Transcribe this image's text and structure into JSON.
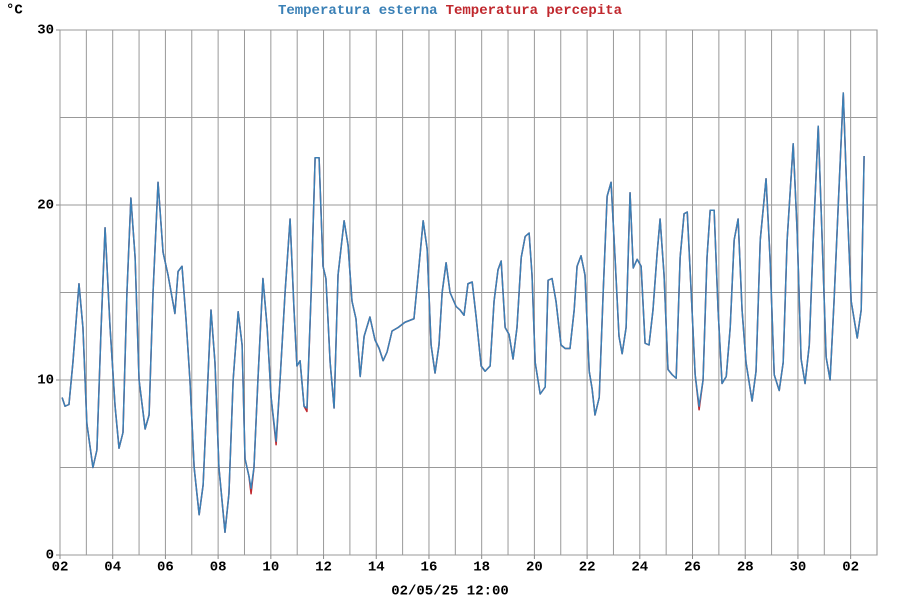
{
  "chart_data": {
    "type": "line",
    "y_unit": "°C",
    "annotation": "02/05/25 12:00",
    "xlim": [
      0,
      31
    ],
    "xticks": [
      {
        "value": 0,
        "label": "02"
      },
      {
        "value": 2,
        "label": "04"
      },
      {
        "value": 4,
        "label": "06"
      },
      {
        "value": 6,
        "label": "08"
      },
      {
        "value": 8,
        "label": "10"
      },
      {
        "value": 10,
        "label": "12"
      },
      {
        "value": 12,
        "label": "14"
      },
      {
        "value": 14,
        "label": "16"
      },
      {
        "value": 16,
        "label": "18"
      },
      {
        "value": 18,
        "label": "20"
      },
      {
        "value": 20,
        "label": "22"
      },
      {
        "value": 22,
        "label": "24"
      },
      {
        "value": 24,
        "label": "26"
      },
      {
        "value": 26,
        "label": "28"
      },
      {
        "value": 28,
        "label": "30"
      },
      {
        "value": 30,
        "label": "02"
      }
    ],
    "xminorticks": [
      1,
      3,
      5,
      7,
      9,
      11,
      13,
      15,
      17,
      19,
      21,
      23,
      25,
      27,
      29
    ],
    "ylim": [
      0,
      30
    ],
    "yticks": [
      0,
      10,
      20,
      30
    ],
    "yminorticks": [
      5,
      15,
      25
    ],
    "grid": true,
    "x": [
      0.08,
      0.19,
      0.34,
      0.49,
      0.72,
      0.87,
      1.02,
      1.25,
      1.4,
      1.56,
      1.71,
      1.9,
      2.09,
      2.24,
      2.39,
      2.54,
      2.69,
      2.85,
      3.0,
      3.23,
      3.38,
      3.53,
      3.72,
      3.91,
      4.1,
      4.36,
      4.48,
      4.63,
      4.78,
      4.93,
      5.09,
      5.28,
      5.43,
      5.58,
      5.73,
      5.88,
      6.03,
      6.26,
      6.41,
      6.57,
      6.76,
      6.91,
      7.02,
      7.17,
      7.25,
      7.36,
      7.51,
      7.7,
      7.86,
      8.01,
      8.2,
      8.35,
      8.54,
      8.73,
      8.88,
      8.99,
      9.11,
      9.26,
      9.37,
      9.53,
      9.68,
      9.83,
      9.98,
      10.09,
      10.25,
      10.4,
      10.55,
      10.78,
      10.93,
      11.08,
      11.23,
      11.39,
      11.54,
      11.76,
      11.95,
      12.11,
      12.26,
      12.41,
      12.6,
      12.83,
      13.09,
      13.43,
      13.59,
      13.78,
      13.93,
      14.08,
      14.23,
      14.38,
      14.5,
      14.65,
      14.8,
      15.03,
      15.18,
      15.33,
      15.48,
      15.64,
      15.79,
      15.98,
      16.13,
      16.32,
      16.47,
      16.62,
      16.74,
      16.89,
      17.04,
      17.19,
      17.34,
      17.5,
      17.65,
      17.8,
      17.91,
      18.03,
      18.22,
      18.41,
      18.52,
      18.67,
      18.82,
      19.01,
      19.17,
      19.35,
      19.51,
      19.62,
      19.77,
      19.92,
      20.08,
      20.19,
      20.3,
      20.46,
      20.61,
      20.76,
      20.91,
      21.06,
      21.21,
      21.33,
      21.48,
      21.63,
      21.75,
      21.9,
      22.05,
      22.2,
      22.35,
      22.5,
      22.66,
      22.77,
      22.92,
      23.07,
      23.23,
      23.38,
      23.53,
      23.68,
      23.8,
      23.95,
      24.1,
      24.25,
      24.4,
      24.55,
      24.67,
      24.82,
      24.97,
      25.12,
      25.28,
      25.43,
      25.58,
      25.73,
      25.88,
      26.03,
      26.26,
      26.41,
      26.57,
      26.79,
      26.94,
      27.1,
      27.29,
      27.44,
      27.59,
      27.82,
      27.97,
      28.12,
      28.27,
      28.43,
      28.58,
      28.77,
      28.92,
      29.07,
      29.22,
      29.37,
      29.53,
      29.72,
      29.87,
      30.02,
      30.25,
      30.4,
      30.51
    ],
    "series": [
      {
        "name": "Temperatura esterna",
        "color": "#3a80b6",
        "values": [
          9.0,
          8.5,
          8.6,
          11,
          15.5,
          13,
          7.5,
          5,
          6,
          13,
          18.7,
          13,
          8.5,
          6.1,
          7,
          15,
          20.4,
          17,
          10,
          7.2,
          8,
          15,
          21.3,
          17.3,
          16,
          13.8,
          16.2,
          16.5,
          13.5,
          10,
          5,
          2.3,
          4,
          9,
          14,
          11,
          5,
          1.3,
          3.5,
          10,
          13.9,
          12,
          5.5,
          4.5,
          3.8,
          5,
          10,
          15.8,
          13,
          9,
          6.5,
          10,
          15,
          19.2,
          14,
          10.8,
          11.1,
          8.5,
          8.4,
          15,
          22.7,
          22.7,
          16.5,
          15.8,
          11,
          8.4,
          16,
          19.1,
          17.7,
          14.5,
          13.5,
          10.2,
          12.5,
          13.6,
          12.3,
          11.8,
          11.1,
          11.6,
          12.8,
          13,
          13.3,
          13.5,
          16,
          19.1,
          17.5,
          12,
          10.4,
          12,
          15,
          16.7,
          15,
          14.2,
          14,
          13.7,
          15.5,
          15.6,
          13.6,
          10.8,
          10.5,
          10.8,
          14.5,
          16.3,
          16.8,
          13,
          12.6,
          11.2,
          13,
          17,
          18.2,
          18.4,
          16,
          11,
          9.2,
          9.6,
          15.7,
          15.8,
          14.5,
          12,
          11.8,
          11.8,
          14,
          16.5,
          17.1,
          16,
          10.5,
          9.5,
          8.0,
          9,
          15,
          20.5,
          21.3,
          17,
          12.5,
          11.5,
          13,
          20.7,
          16.4,
          16.9,
          16.5,
          12.1,
          12,
          14,
          17.3,
          19.2,
          16,
          10.6,
          10.3,
          10.1,
          17,
          19.5,
          19.6,
          15,
          10.3,
          8.5,
          10,
          17,
          19.7,
          19.7,
          14,
          9.8,
          10.2,
          13,
          18,
          19.2,
          14,
          11,
          8.8,
          10.5,
          18,
          21.5,
          17,
          10.3,
          9.4,
          11,
          18,
          23.5,
          18.5,
          11.2,
          9.8,
          12,
          18,
          24.5,
          18,
          11.3,
          10,
          14.5,
          20,
          26.4,
          20,
          14.5,
          12.4,
          14,
          22.8
        ]
      },
      {
        "name": "Temperatura percepita",
        "color": "#c0282e",
        "values": [
          9.0,
          8.5,
          8.6,
          11,
          15.5,
          13,
          7.5,
          5,
          6,
          13,
          18.7,
          13,
          8.5,
          6.1,
          7,
          15,
          20.4,
          17,
          10,
          7.2,
          8,
          15,
          21.3,
          17.3,
          16,
          13.8,
          16.2,
          16.5,
          13.5,
          10,
          5,
          2.3,
          4,
          9,
          14,
          11,
          5,
          1.3,
          3.5,
          10,
          13.9,
          12,
          5.5,
          4.5,
          3.5,
          5,
          10,
          15.8,
          13,
          9,
          6.3,
          10,
          15,
          19.2,
          14,
          10.8,
          11.1,
          8.5,
          8.2,
          15,
          22.7,
          22.7,
          16.5,
          15.8,
          11,
          8.4,
          16,
          19.1,
          17.7,
          14.5,
          13.5,
          10.2,
          12.5,
          13.6,
          12.3,
          11.8,
          11.1,
          11.6,
          12.8,
          13,
          13.3,
          13.5,
          16,
          19.1,
          17.5,
          12,
          10.4,
          12,
          15,
          16.7,
          15,
          14.2,
          14,
          13.7,
          15.5,
          15.6,
          13.6,
          10.8,
          10.5,
          10.8,
          14.5,
          16.3,
          16.8,
          13,
          12.6,
          11.2,
          13,
          17,
          18.2,
          18.4,
          16,
          11,
          9.2,
          9.6,
          15.7,
          15.8,
          14.5,
          12,
          11.8,
          11.8,
          14,
          16.5,
          17.1,
          16,
          10.5,
          9.5,
          8.0,
          9,
          15,
          20.5,
          21.3,
          17,
          12.5,
          11.5,
          13,
          20.7,
          16.4,
          16.9,
          16.5,
          12.1,
          12,
          14,
          17.3,
          19.2,
          16,
          10.6,
          10.3,
          10.1,
          17,
          19.5,
          19.6,
          15,
          10.3,
          8.3,
          10,
          17,
          19.7,
          19.7,
          14,
          9.8,
          10.2,
          13,
          18,
          19.2,
          14,
          11,
          8.8,
          10.5,
          18,
          21.5,
          17,
          10.3,
          9.4,
          11,
          18,
          23.5,
          18.5,
          11.2,
          9.8,
          12,
          18,
          24.5,
          18,
          11.3,
          10,
          14.5,
          20,
          26.4,
          20,
          14.5,
          12.4,
          14,
          22.8
        ]
      }
    ]
  }
}
